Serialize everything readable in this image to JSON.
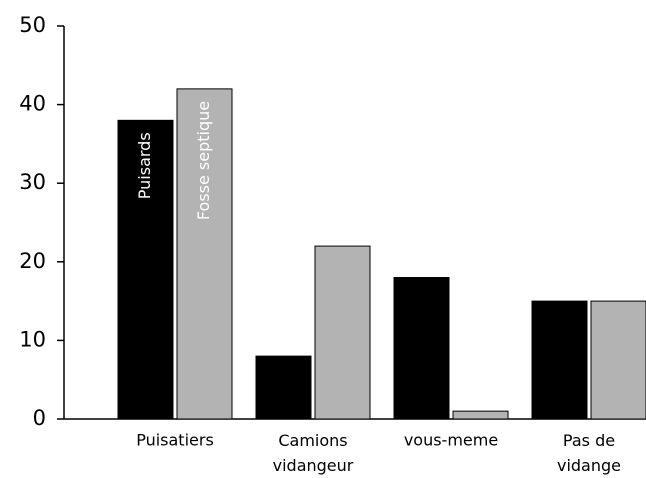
{
  "chart_data": {
    "type": "bar",
    "categories": [
      "Puisatiers",
      "Camions vidangeur",
      "vous-meme",
      "Pas de vidange"
    ],
    "series": [
      {
        "name": "Puisards",
        "color": "#000000",
        "values": [
          38,
          8,
          18,
          15
        ]
      },
      {
        "name": "Fosse septique",
        "color": "#b3b3b3",
        "values": [
          42,
          22,
          1,
          15
        ]
      }
    ],
    "ylim": [
      0,
      50
    ],
    "yticks": [
      0,
      10,
      20,
      30,
      40,
      50
    ],
    "grid": false
  }
}
